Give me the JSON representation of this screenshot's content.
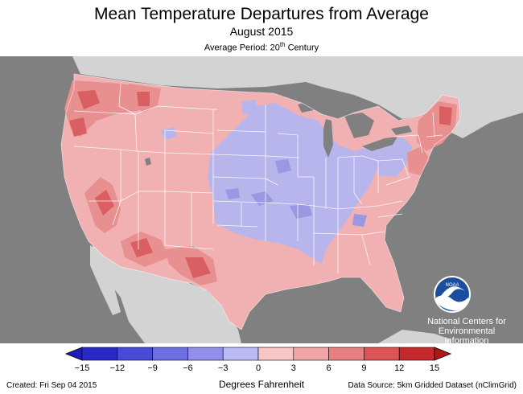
{
  "header": {
    "title": "Mean Temperature Departures from Average",
    "subtitle": "August 2015",
    "period_prefix": "Average Period: 20",
    "period_sup": "th",
    "period_suffix": " Century"
  },
  "logo": {
    "lines": [
      "National Centers for",
      "Environmental",
      "Information"
    ]
  },
  "legend": {
    "units": "Degrees Fahrenheit",
    "ticks": [
      "−15",
      "−12",
      "−9",
      "−6",
      "−3",
      "0",
      "3",
      "6",
      "9",
      "12",
      "15"
    ],
    "colors": [
      "#2a2ac8",
      "#4a4ad8",
      "#6e6ee3",
      "#9090ec",
      "#bcbcf5",
      "#f8c6c6",
      "#f0a6a6",
      "#e77f80",
      "#dc5455",
      "#c62a2c"
    ],
    "below_color": "#1c1cb8",
    "above_color": "#b01818"
  },
  "footer": {
    "created": "Created: Fri Sep 04 2015",
    "source": "Data Source: 5km Gridded Dataset (nClimGrid)"
  },
  "map_colors": {
    "ocean": "#808080",
    "foreign_land": "#d3d3d3",
    "lakes": "#808080",
    "warm_base": "#f1b1b2",
    "warm_mid": "#e88f90",
    "warm_strong": "#d95f62",
    "cool_base": "#b7b5ec",
    "cool_mid": "#9a98e2",
    "cool_strong": "#7c7ad8",
    "borders": "#ffffff"
  }
}
